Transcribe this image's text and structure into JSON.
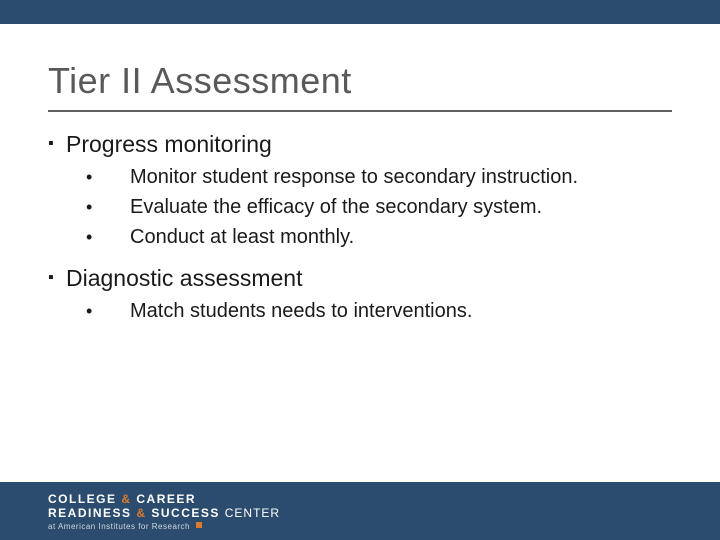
{
  "title": "Tier II Assessment",
  "colors": {
    "bar": "#2b4c6f",
    "accent": "#d97b2e",
    "title_text": "#595959",
    "body_text": "#1a1a1a",
    "rule": "#606060"
  },
  "sections": [
    {
      "label": "Progress monitoring",
      "items": [
        "Monitor student response to secondary instruction.",
        "Evaluate the efficacy of the secondary system.",
        "Conduct at least monthly."
      ]
    },
    {
      "label": "Diagnostic assessment",
      "items": [
        "Match students needs to interventions."
      ]
    }
  ],
  "footer": {
    "line1_a": "COLLEGE",
    "line1_amp": "&",
    "line1_b": "CAREER",
    "line2_a": "READINESS",
    "line2_amp": "&",
    "line2_b": "SUCCESS",
    "line2_c": "CENTER",
    "sub": "at American Institutes for Research"
  }
}
